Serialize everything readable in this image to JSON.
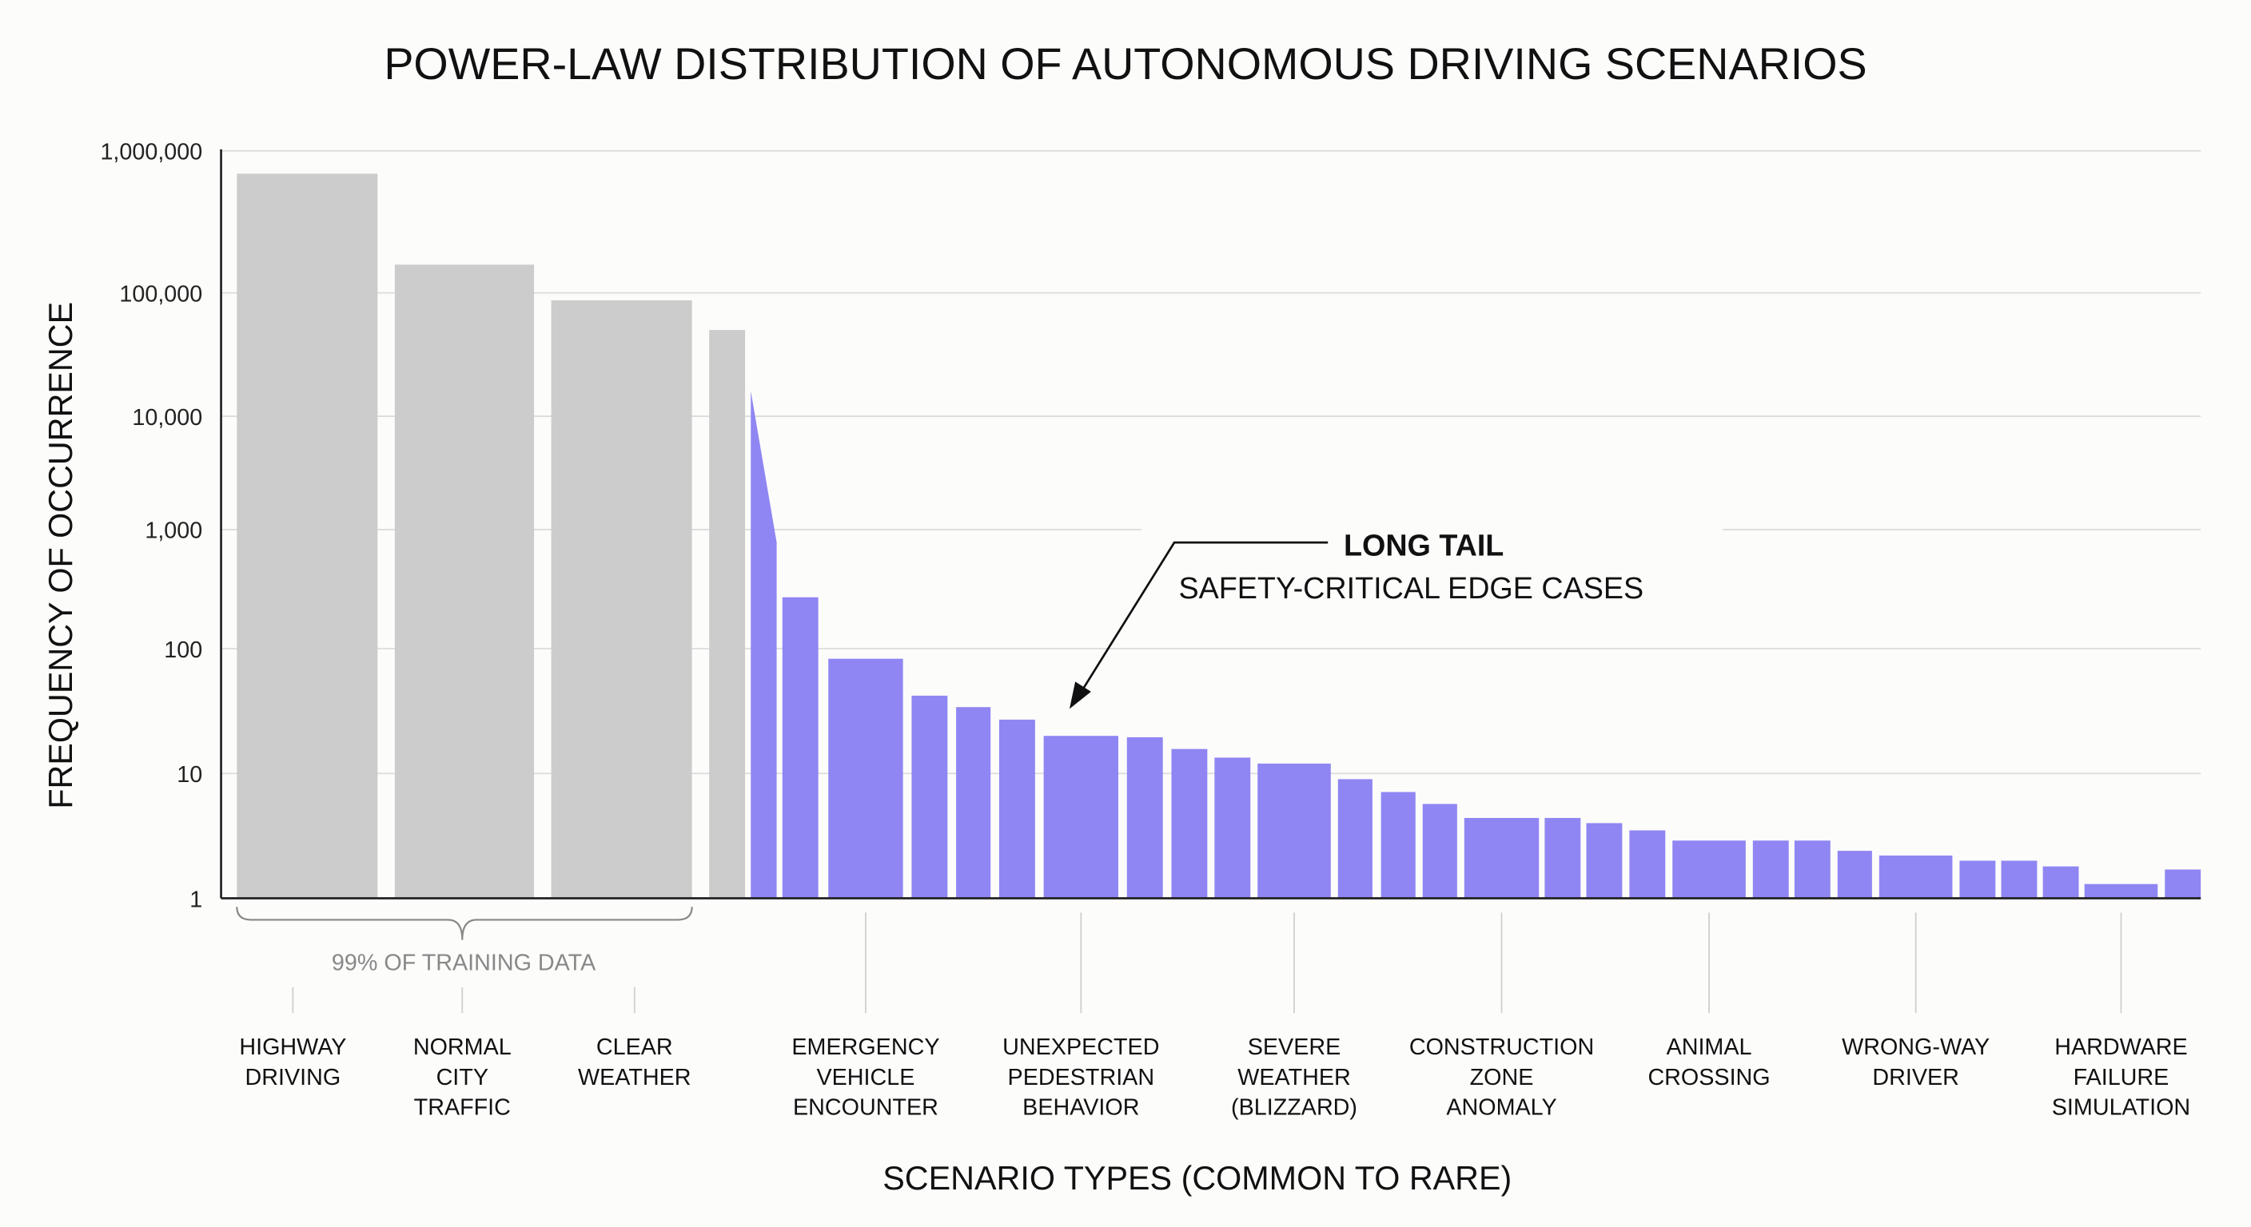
{
  "chart_data": {
    "type": "bar",
    "title": "POWER-LAW DISTRIBUTION OF AUTONOMOUS DRIVING SCENARIOS",
    "xlabel": "SCENARIO TYPES (COMMON TO RARE)",
    "ylabel": "FREQUENCY OF OCCURRENCE",
    "y_scale": "log",
    "ylim": [
      1,
      1000000
    ],
    "grid": true,
    "y_ticks": [
      {
        "value": 1,
        "label": "1"
      },
      {
        "value": 10,
        "label": "10"
      },
      {
        "value": 100,
        "label": "100"
      },
      {
        "value": 1000,
        "label": "1,000"
      },
      {
        "value": 10000,
        "label": "10,000"
      },
      {
        "value": 100000,
        "label": "100,000"
      },
      {
        "value": 1000000,
        "label": "1,000,000"
      }
    ],
    "colors": {
      "common": "#cccccc",
      "long_tail": "#8f86f3"
    },
    "bars": [
      {
        "group": "common",
        "value": 690000,
        "label": [
          "HIGHWAY",
          "DRIVING"
        ]
      },
      {
        "group": "common",
        "value": 158000,
        "label": [
          "NORMAL",
          "CITY",
          "TRAFFIC"
        ]
      },
      {
        "group": "common",
        "value": 87000,
        "label": [
          "CLEAR",
          "WEATHER"
        ]
      },
      {
        "group": "common",
        "value": 50000
      },
      {
        "group": "long_tail",
        "value_range": [
          16000,
          780
        ]
      },
      {
        "group": "long_tail",
        "value": 270
      },
      {
        "group": "long_tail",
        "value": 83,
        "label": [
          "EMERGENCY",
          "VEHICLE",
          "ENCOUNTER"
        ]
      },
      {
        "group": "long_tail",
        "value": 42
      },
      {
        "group": "long_tail",
        "value": 34
      },
      {
        "group": "long_tail",
        "value": 27
      },
      {
        "group": "long_tail",
        "value": 20,
        "label": [
          "UNEXPECTED",
          "PEDESTRIAN",
          "BEHAVIOR"
        ]
      },
      {
        "group": "long_tail",
        "value": 19.5
      },
      {
        "group": "long_tail",
        "value": 15.7
      },
      {
        "group": "long_tail",
        "value": 13.4
      },
      {
        "group": "long_tail",
        "value": 12,
        "label": [
          "SEVERE",
          "WEATHER",
          "(BLIZZARD)"
        ]
      },
      {
        "group": "long_tail",
        "value": 9
      },
      {
        "group": "long_tail",
        "value": 7.1
      },
      {
        "group": "long_tail",
        "value": 5.7
      },
      {
        "group": "long_tail",
        "value": 4.4,
        "label": [
          "CONSTRUCTION",
          "ZONE",
          "ANOMALY"
        ]
      },
      {
        "group": "long_tail",
        "value": 4.4
      },
      {
        "group": "long_tail",
        "value": 4
      },
      {
        "group": "long_tail",
        "value": 3.5
      },
      {
        "group": "long_tail",
        "value": 2.9,
        "label": [
          "ANIMAL",
          "CROSSING"
        ]
      },
      {
        "group": "long_tail",
        "value": 2.9
      },
      {
        "group": "long_tail",
        "value": 2.9
      },
      {
        "group": "long_tail",
        "value": 2.4
      },
      {
        "group": "long_tail",
        "value": 2.2,
        "label": [
          "WRONG-WAY",
          "DRIVER"
        ]
      },
      {
        "group": "long_tail",
        "value": 2
      },
      {
        "group": "long_tail",
        "value": 2
      },
      {
        "group": "long_tail",
        "value": 1.8
      },
      {
        "group": "long_tail",
        "value": 1.3,
        "label": [
          "HARDWARE",
          "FAILURE",
          "SIMULATION"
        ]
      },
      {
        "group": "long_tail",
        "value": 1.7
      }
    ],
    "annotations": {
      "long_tail_title": "LONG TAIL",
      "long_tail_subtitle": "SAFETY-CRITICAL EDGE CASES",
      "bracket_label": "99% OF TRAINING DATA"
    }
  }
}
